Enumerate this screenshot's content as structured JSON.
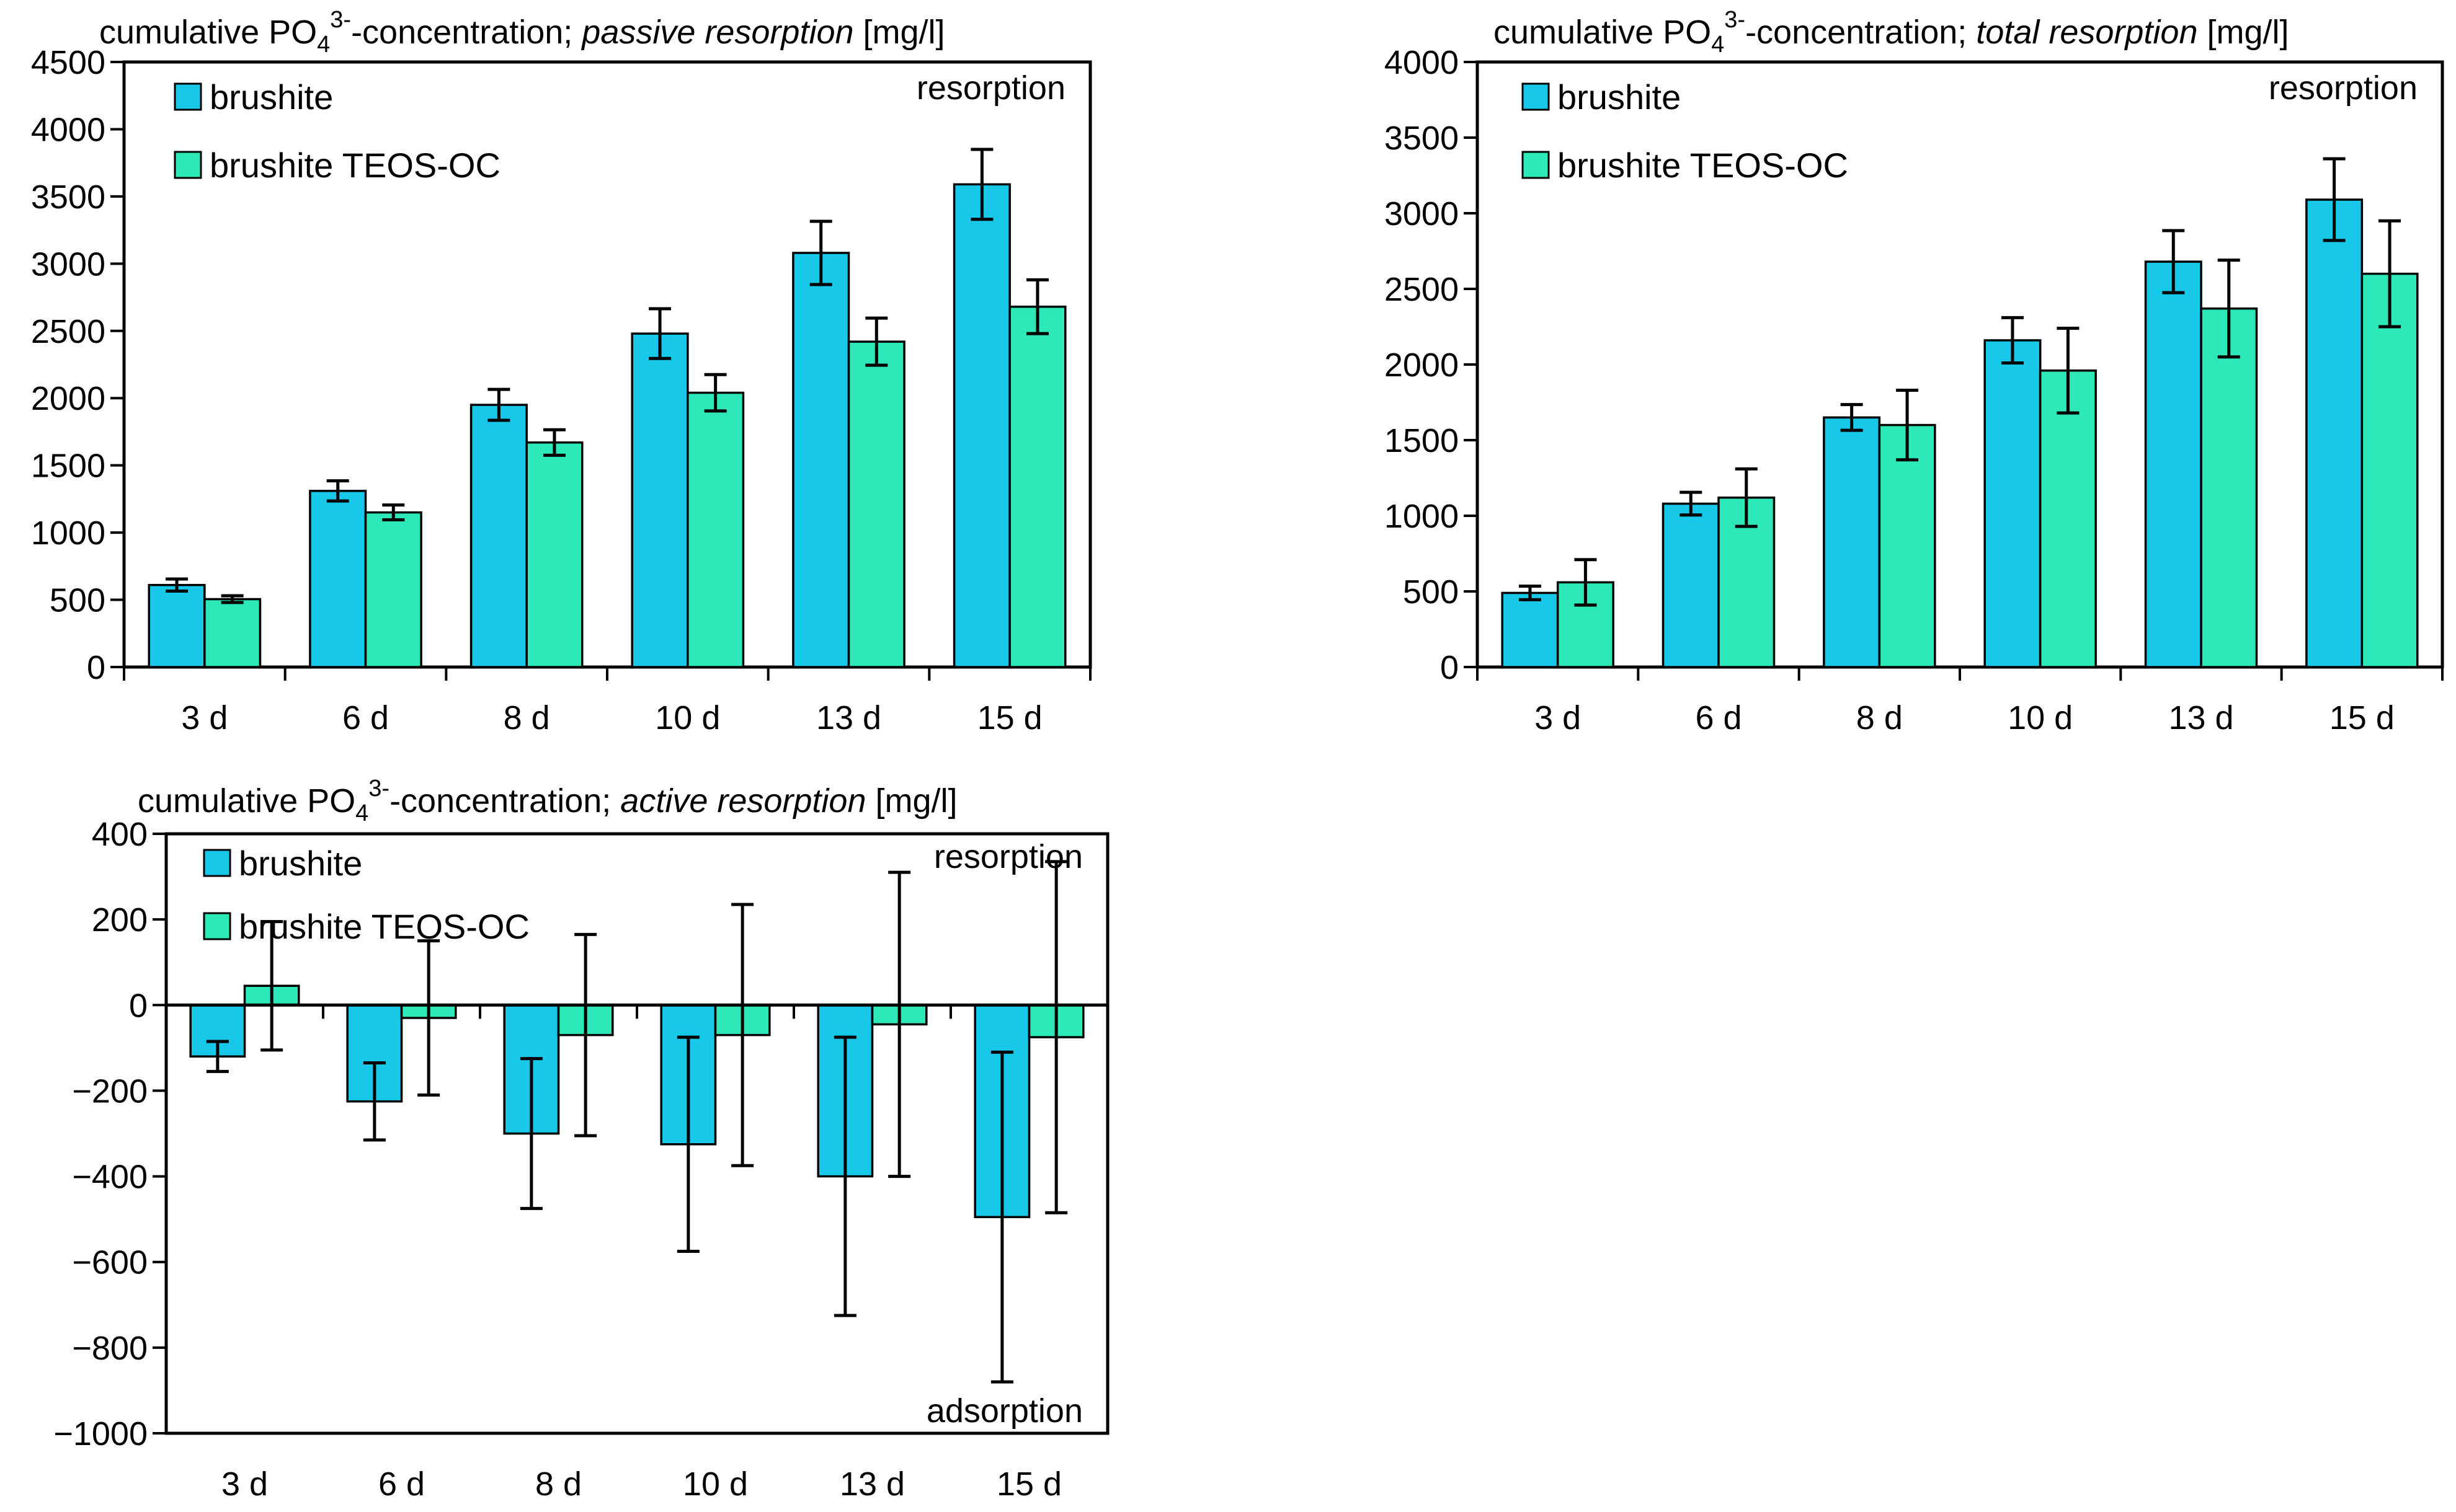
{
  "colors": {
    "brushite": "#18c8e8",
    "brushite_teos": "#2de8b8",
    "axis": "#000000",
    "error_bar": "#000000"
  },
  "chart_data": [
    {
      "type": "bar",
      "title": {
        "prefix": "cumulative PO",
        "sub": "4",
        "sup": "3-",
        "middle": "-concentration; ",
        "emph": "passive resorption",
        "suffix": " [mg/l]"
      },
      "categories": [
        "3 d",
        "6 d",
        "8 d",
        "10 d",
        "13 d",
        "15 d"
      ],
      "series": [
        {
          "name": "brushite",
          "values": [
            610,
            1310,
            1950,
            2480,
            3080,
            3590
          ],
          "errors": [
            45,
            75,
            115,
            185,
            235,
            260
          ]
        },
        {
          "name": "brushite TEOS-OC",
          "values": [
            505,
            1150,
            1670,
            2040,
            2420,
            2680
          ],
          "errors": [
            25,
            55,
            95,
            135,
            175,
            200
          ]
        }
      ],
      "ylim": [
        0,
        4500
      ],
      "yticks": [
        0,
        500,
        1000,
        1500,
        2000,
        2500,
        3000,
        3500,
        4000,
        4500
      ],
      "annotations": {
        "top": "resorption"
      },
      "legend": "top-left"
    },
    {
      "type": "bar",
      "title": {
        "prefix": "cumulative PO",
        "sub": "4",
        "sup": "3-",
        "middle": "-concentration; ",
        "emph": "total resorption",
        "suffix": " [mg/l]"
      },
      "categories": [
        "3 d",
        "6 d",
        "8 d",
        "10 d",
        "13 d",
        "15 d"
      ],
      "series": [
        {
          "name": "brushite",
          "values": [
            490,
            1080,
            1650,
            2160,
            2680,
            3090
          ],
          "errors": [
            45,
            75,
            85,
            150,
            205,
            270
          ]
        },
        {
          "name": "brushite TEOS-OC",
          "values": [
            560,
            1120,
            1600,
            1960,
            2370,
            2600
          ],
          "errors": [
            150,
            190,
            230,
            280,
            320,
            350
          ]
        }
      ],
      "ylim": [
        0,
        4000
      ],
      "yticks": [
        0,
        500,
        1000,
        1500,
        2000,
        2500,
        3000,
        3500,
        4000
      ],
      "annotations": {
        "top": "resorption"
      },
      "legend": "top-left"
    },
    {
      "type": "bar",
      "title": {
        "prefix": "cumulative PO",
        "sub": "4",
        "sup": "3-",
        "middle": "-concentration; ",
        "emph": "active resorption",
        "suffix": " [mg/l]"
      },
      "categories": [
        "3 d",
        "6 d",
        "8 d",
        "10 d",
        "13 d",
        "15 d"
      ],
      "series": [
        {
          "name": "brushite",
          "values": [
            -120,
            -225,
            -300,
            -325,
            -400,
            -495
          ],
          "errors": [
            35,
            90,
            175,
            250,
            325,
            385
          ]
        },
        {
          "name": "brushite TEOS-OC",
          "values": [
            45,
            -30,
            -70,
            -70,
            -45,
            -75
          ],
          "errors": [
            150,
            180,
            235,
            305,
            355,
            410
          ]
        }
      ],
      "ylim": [
        -1000,
        400
      ],
      "yticks": [
        -1000,
        -800,
        -600,
        -400,
        -200,
        0,
        200,
        400
      ],
      "yticklabels": [
        "−1000",
        "−800",
        "−600",
        "−400",
        "−200",
        "0",
        "200",
        "400"
      ],
      "annotations": {
        "top": "resorption",
        "bottom": "adsorption"
      },
      "legend": "top-left"
    }
  ]
}
